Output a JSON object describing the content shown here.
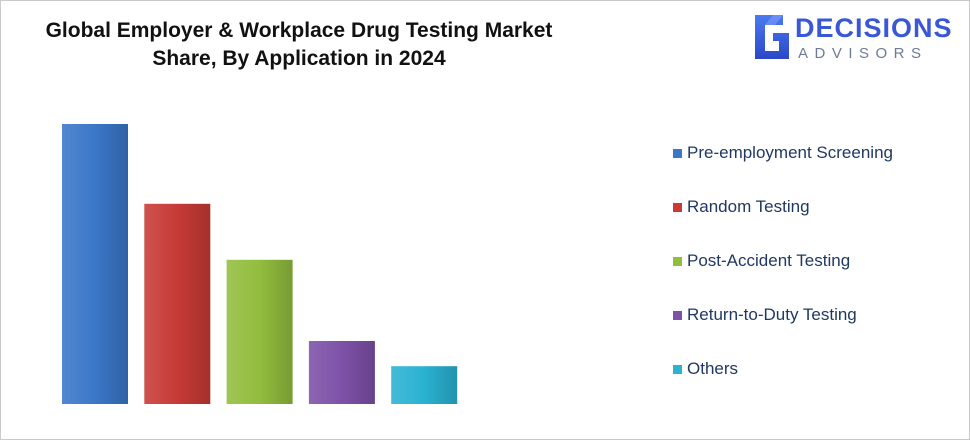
{
  "title_line1": "Global Employer & Workplace Drug Testing Market",
  "title_line2": "Share, By Application in 2024",
  "logo": {
    "word1": "DECISIONS",
    "word2": "ADVISORS",
    "color": "#3a57d8",
    "icon": "decisions-advisors-logo-icon"
  },
  "chart_data": {
    "type": "bar",
    "title": "Global Employer & Workplace Drug Testing Market Share, By Application in 2024",
    "categories": [
      "Pre-employment Screening",
      "Random Testing",
      "Post-Accident Testing",
      "Return-to-Duty Testing",
      "Others"
    ],
    "values": [
      100,
      71.5,
      51.5,
      22.5,
      13.5
    ],
    "colors": [
      "#3a77c8",
      "#c73a36",
      "#92bd3e",
      "#7e51a8",
      "#2ab2d2"
    ],
    "ylim": [
      0,
      100
    ],
    "grid": false,
    "legend_position": "right",
    "xlabel": "",
    "ylabel": ""
  }
}
